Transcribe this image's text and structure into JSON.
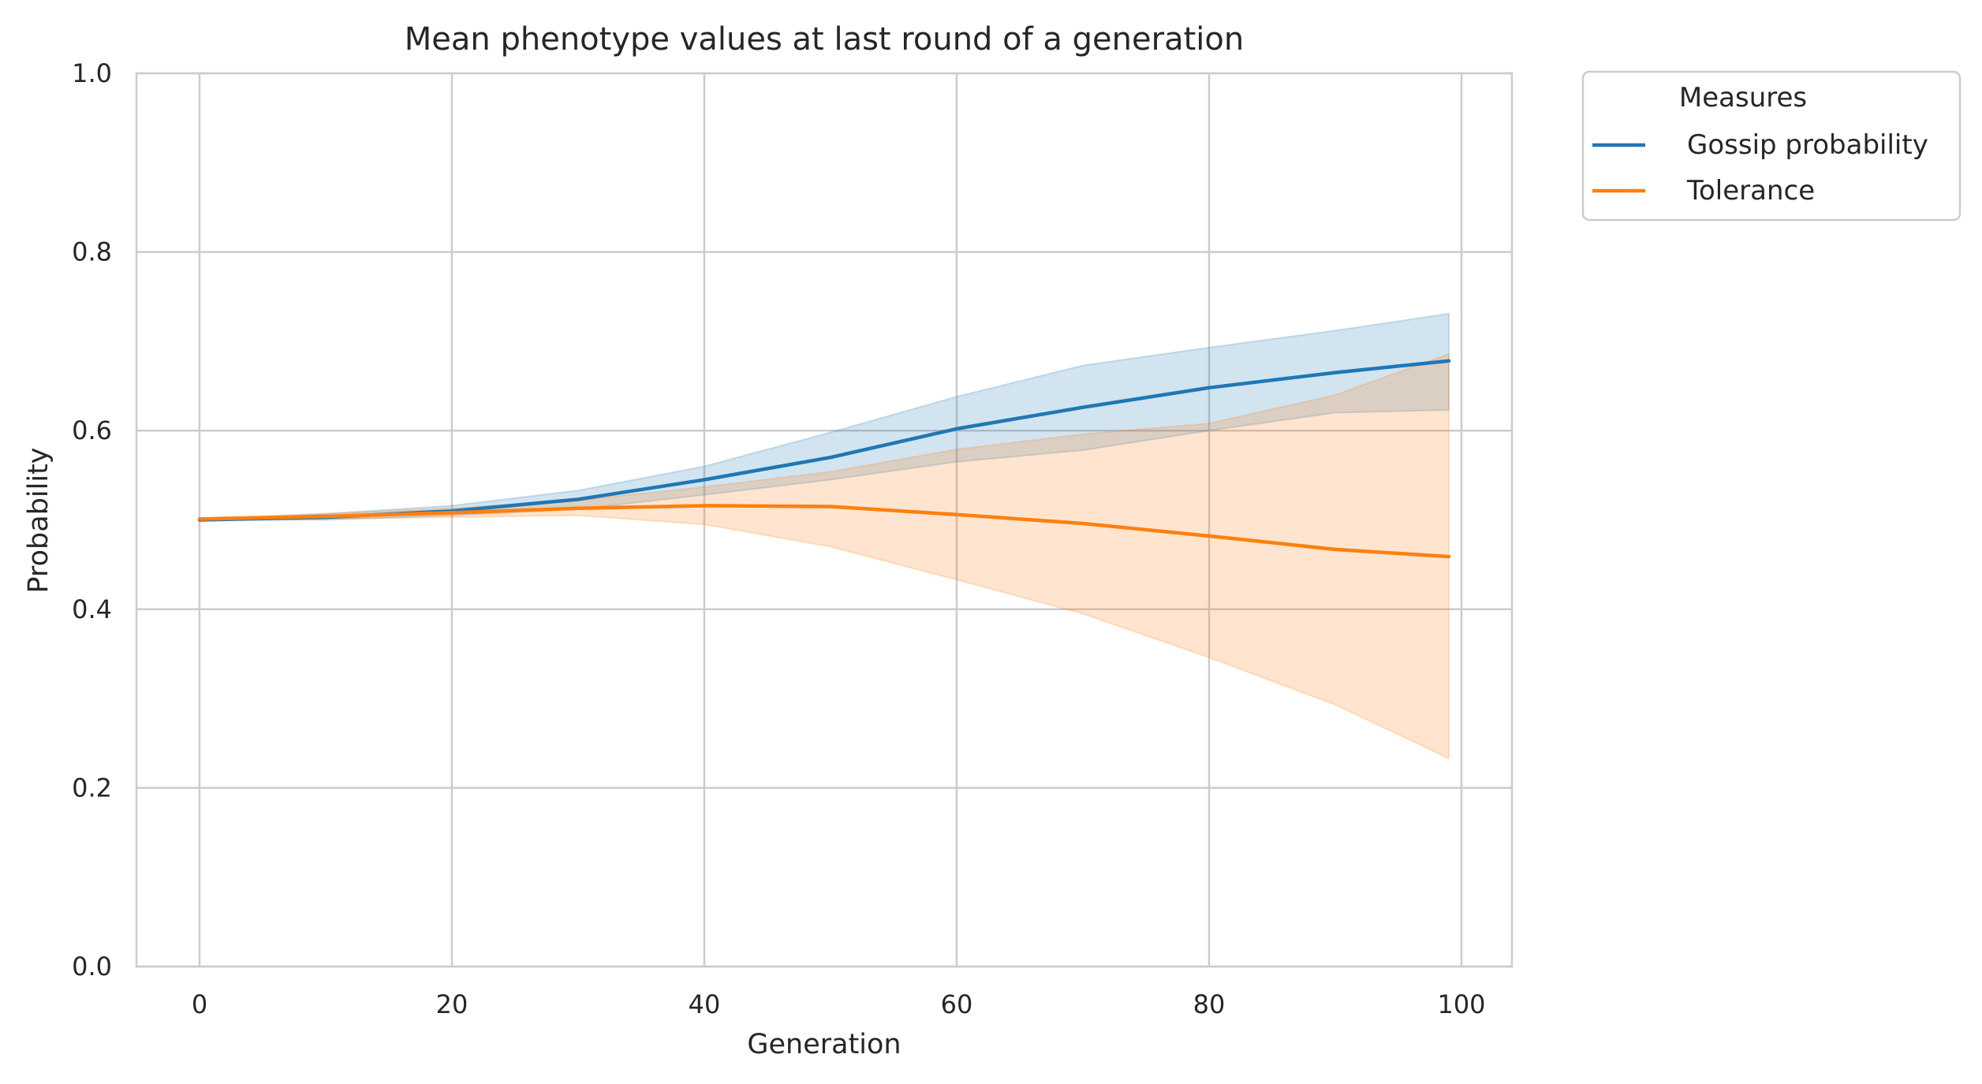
{
  "chart_data": {
    "type": "line",
    "title": "Mean phenotype values at last round of a generation",
    "xlabel": "Generation",
    "ylabel": "Probability",
    "xlim": [
      -5,
      104
    ],
    "ylim": [
      0,
      1
    ],
    "xticks": [
      0,
      20,
      40,
      60,
      80,
      100
    ],
    "xtick_labels": [
      "0",
      "20",
      "40",
      "60",
      "80",
      "100"
    ],
    "yticks": [
      0,
      0.2,
      0.4,
      0.6,
      0.8,
      1.0
    ],
    "ytick_labels": [
      "0.0",
      "0.2",
      "0.4",
      "0.6",
      "0.8",
      "1.0"
    ],
    "grid": true,
    "legend": {
      "title": "Measures",
      "placement": "outside-upper-right"
    },
    "x": [
      0,
      10,
      20,
      30,
      40,
      50,
      60,
      70,
      80,
      90,
      99
    ],
    "series": [
      {
        "name": "Gossip probability",
        "color": "#1f77b4",
        "values": [
          0.5,
          0.503,
          0.51,
          0.523,
          0.545,
          0.57,
          0.602,
          0.626,
          0.648,
          0.665,
          0.678
        ],
        "lower": [
          0.5,
          0.5,
          0.505,
          0.512,
          0.528,
          0.545,
          0.565,
          0.578,
          0.6,
          0.62,
          0.623
        ],
        "upper": [
          0.5,
          0.507,
          0.516,
          0.533,
          0.56,
          0.598,
          0.638,
          0.673,
          0.693,
          0.712,
          0.731
        ]
      },
      {
        "name": "Tolerance",
        "color": "#ff7f0e",
        "values": [
          0.501,
          0.504,
          0.508,
          0.513,
          0.516,
          0.515,
          0.506,
          0.496,
          0.482,
          0.467,
          0.459
        ],
        "lower": [
          0.5,
          0.501,
          0.503,
          0.505,
          0.495,
          0.47,
          0.433,
          0.395,
          0.346,
          0.293,
          0.233
        ],
        "upper": [
          0.502,
          0.507,
          0.513,
          0.522,
          0.537,
          0.554,
          0.579,
          0.596,
          0.608,
          0.64,
          0.686
        ]
      }
    ]
  }
}
